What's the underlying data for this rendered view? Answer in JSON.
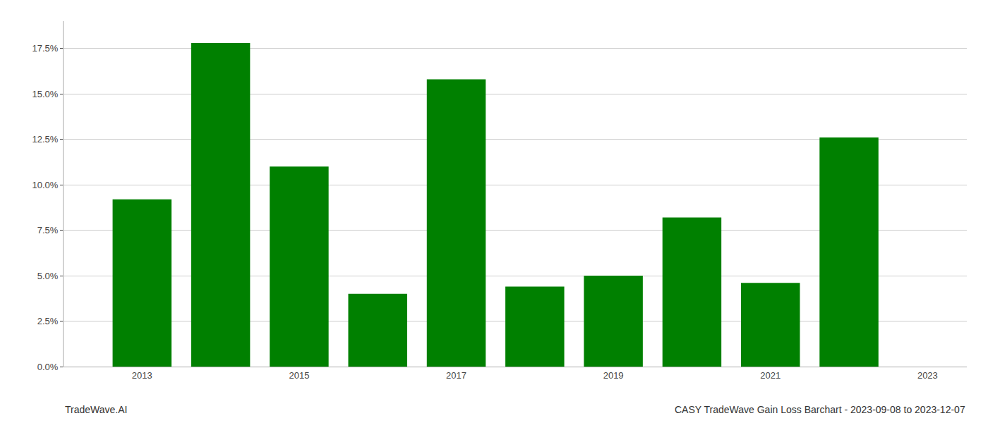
{
  "chart_data": {
    "type": "bar",
    "title": "CASY TradeWave Gain Loss Barchart - 2023-09-08 to 2023-12-07",
    "annotations": [
      "TradeWave.AI"
    ],
    "x": [
      2013,
      2014,
      2015,
      2016,
      2017,
      2018,
      2019,
      2020,
      2021,
      2022
    ],
    "values": [
      0.092,
      0.178,
      0.11,
      0.04,
      0.158,
      0.044,
      0.05,
      0.082,
      0.046,
      0.126
    ],
    "color": "#008000",
    "xlim": [
      2012.0,
      2023.5
    ],
    "xticks": [
      2013,
      2015,
      2017,
      2019,
      2021,
      2023
    ],
    "ylim": [
      0,
      0.19
    ],
    "yticks": [
      {
        "value": 0.0,
        "label": "0.0%"
      },
      {
        "value": 0.025,
        "label": "2.5%"
      },
      {
        "value": 0.05,
        "label": "5.0%"
      },
      {
        "value": 0.075,
        "label": "7.5%"
      },
      {
        "value": 0.1,
        "label": "10.0%"
      },
      {
        "value": 0.125,
        "label": "12.5%"
      },
      {
        "value": 0.15,
        "label": "15.0%"
      },
      {
        "value": 0.175,
        "label": "17.5%"
      }
    ],
    "grid": true
  }
}
